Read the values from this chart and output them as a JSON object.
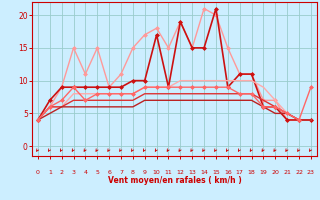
{
  "background_color": "#cceeff",
  "grid_color": "#99cccc",
  "x_label": "Vent moyen/en rafales ( km/h )",
  "x_ticks": [
    0,
    1,
    2,
    3,
    4,
    5,
    6,
    7,
    8,
    9,
    10,
    11,
    12,
    13,
    14,
    15,
    16,
    17,
    18,
    19,
    20,
    21,
    22,
    23
  ],
  "y_ticks": [
    0,
    5,
    10,
    15,
    20
  ],
  "ylim": [
    -1.5,
    22
  ],
  "xlim": [
    -0.5,
    23.5
  ],
  "series": [
    {
      "x": [
        0,
        1,
        2,
        3,
        4,
        5,
        6,
        7,
        8,
        9,
        10,
        11,
        12,
        13,
        14,
        15,
        16,
        17,
        18,
        19,
        20,
        21,
        22,
        23
      ],
      "y": [
        4,
        6,
        9,
        15,
        11,
        15,
        9,
        11,
        15,
        17,
        18,
        15,
        19,
        15,
        21,
        20,
        15,
        11,
        11,
        7,
        7,
        4,
        4,
        4
      ],
      "color": "#ff9999",
      "lw": 1.0,
      "marker": "D",
      "ms": 2.5
    },
    {
      "x": [
        0,
        1,
        2,
        3,
        4,
        5,
        6,
        7,
        8,
        9,
        10,
        11,
        12,
        13,
        14,
        15,
        16,
        17,
        18,
        19,
        20,
        21,
        22,
        23
      ],
      "y": [
        4,
        7,
        9,
        9,
        9,
        9,
        9,
        9,
        10,
        10,
        17,
        9,
        19,
        15,
        15,
        21,
        9,
        11,
        11,
        6,
        6,
        4,
        4,
        4
      ],
      "color": "#cc1111",
      "lw": 1.2,
      "marker": "D",
      "ms": 2.5
    },
    {
      "x": [
        0,
        1,
        2,
        3,
        4,
        5,
        6,
        7,
        8,
        9,
        10,
        11,
        12,
        13,
        14,
        15,
        16,
        17,
        18,
        19,
        20,
        21,
        22,
        23
      ],
      "y": [
        4,
        6,
        6,
        8,
        8,
        8,
        8,
        8,
        8,
        9,
        9,
        9,
        10,
        10,
        10,
        10,
        10,
        10,
        10,
        9,
        7,
        5,
        4,
        4
      ],
      "color": "#ffaaaa",
      "lw": 1.0,
      "marker": null,
      "ms": 0
    },
    {
      "x": [
        0,
        1,
        2,
        3,
        4,
        5,
        6,
        7,
        8,
        9,
        10,
        11,
        12,
        13,
        14,
        15,
        16,
        17,
        18,
        19,
        20,
        21,
        22,
        23
      ],
      "y": [
        4,
        6,
        6,
        7,
        7,
        7,
        7,
        7,
        7,
        8,
        8,
        8,
        8,
        8,
        8,
        8,
        8,
        8,
        8,
        7,
        6,
        5,
        4,
        4
      ],
      "color": "#dd3333",
      "lw": 1.0,
      "marker": null,
      "ms": 0
    },
    {
      "x": [
        0,
        1,
        2,
        3,
        4,
        5,
        6,
        7,
        8,
        9,
        10,
        11,
        12,
        13,
        14,
        15,
        16,
        17,
        18,
        19,
        20,
        21,
        22,
        23
      ],
      "y": [
        4,
        5,
        6,
        6,
        6,
        6,
        6,
        6,
        6,
        7,
        7,
        7,
        7,
        7,
        7,
        7,
        7,
        7,
        7,
        6,
        5,
        5,
        4,
        4
      ],
      "color": "#bb2222",
      "lw": 1.0,
      "marker": null,
      "ms": 0
    },
    {
      "x": [
        0,
        1,
        2,
        3,
        4,
        5,
        6,
        7,
        8,
        9,
        10,
        11,
        12,
        13,
        14,
        15,
        16,
        17,
        18,
        19,
        20,
        21,
        22,
        23
      ],
      "y": [
        4,
        6,
        7,
        9,
        7,
        8,
        8,
        8,
        8,
        9,
        9,
        9,
        9,
        9,
        9,
        9,
        9,
        8,
        8,
        6,
        6,
        5,
        4,
        9
      ],
      "color": "#ff6666",
      "lw": 1.0,
      "marker": "D",
      "ms": 2.5
    }
  ],
  "arrow_color": "#cc0000",
  "title_color": "#cc0000",
  "spine_color": "#cc0000"
}
